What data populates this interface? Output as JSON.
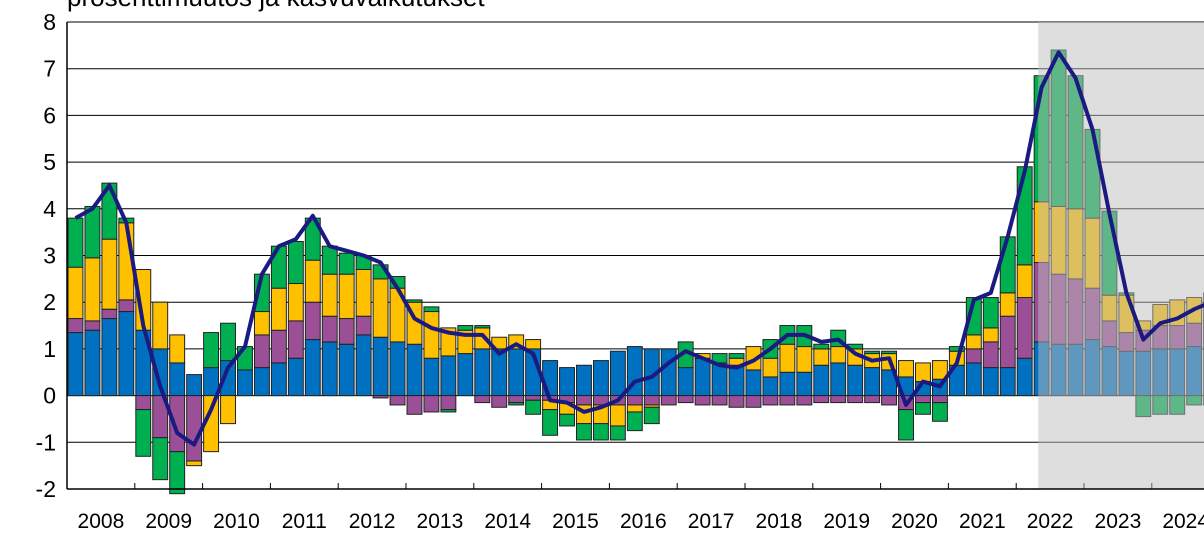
{
  "chart_data": {
    "type": "stacked-bar-line",
    "title": "prosenttimuutos ja kasvuvaikutukset",
    "categories": [
      null,
      null,
      null,
      null,
      null,
      null,
      null,
      null,
      null,
      null,
      null,
      null,
      null,
      null,
      null,
      null,
      null,
      null,
      null,
      null,
      null,
      null,
      null,
      null,
      null,
      null,
      null,
      null,
      null,
      null,
      null,
      null,
      null,
      null,
      null,
      null,
      null,
      null,
      null,
      null,
      null,
      null,
      null,
      null,
      null,
      null,
      null,
      null,
      null,
      null,
      null,
      null,
      null,
      null,
      null,
      null,
      null,
      null,
      null,
      null,
      null,
      null,
      null,
      null,
      null,
      null,
      null,
      null
    ],
    "year_labels": [
      "2008",
      "2009",
      "2010",
      "2011",
      "2012",
      "2013",
      "2014",
      "2015",
      "2016",
      "2017",
      "2018",
      "2019",
      "2020",
      "2021",
      "2022",
      "2023",
      "2024"
    ],
    "ylim": [
      -2,
      8
    ],
    "yticks": [
      -2,
      -1,
      0,
      1,
      2,
      3,
      4,
      5,
      6,
      7,
      8
    ],
    "grid": true,
    "series": [
      {
        "color": "#0070c0",
        "values": [
          1.35,
          1.4,
          1.65,
          1.8,
          1.4,
          1.0,
          0.7,
          0.45,
          0.6,
          0.75,
          0.55,
          0.6,
          0.7,
          0.8,
          1.2,
          1.15,
          1.1,
          1.3,
          1.25,
          1.15,
          1.1,
          0.8,
          0.85,
          0.9,
          1.0,
          1.0,
          1.0,
          1.0,
          0.75,
          0.6,
          0.65,
          0.75,
          0.95,
          1.05,
          1.0,
          1.0,
          0.6,
          0.8,
          0.7,
          0.65,
          0.55,
          0.4,
          0.5,
          0.5,
          0.65,
          0.7,
          0.65,
          0.6,
          0.55,
          0.4,
          0.3,
          0.35,
          0.65,
          0.7,
          0.6,
          0.6,
          0.8,
          1.15,
          1.1,
          1.1,
          1.2,
          1.05,
          0.95,
          0.95,
          1.0,
          1.0,
          1.05,
          1.05
        ]
      },
      {
        "color": "#9b4f96",
        "values": [
          0.3,
          0.2,
          0.2,
          0.25,
          -0.3,
          -0.9,
          -1.2,
          -1.4,
          0,
          0,
          0,
          0.7,
          0.7,
          0.8,
          0.8,
          0.55,
          0.55,
          0.4,
          -0.05,
          -0.2,
          -0.4,
          -0.35,
          -0.3,
          0,
          -0.15,
          -0.25,
          -0.15,
          -0.1,
          -0.1,
          -0.15,
          -0.2,
          -0.2,
          -0.2,
          -0.2,
          -0.2,
          -0.2,
          -0.15,
          -0.2,
          -0.2,
          -0.25,
          -0.25,
          -0.2,
          -0.2,
          -0.2,
          -0.15,
          -0.15,
          -0.15,
          -0.15,
          -0.2,
          -0.3,
          -0.15,
          -0.15,
          0,
          0.3,
          0.55,
          1.1,
          1.3,
          1.7,
          1.5,
          1.4,
          1.1,
          0.55,
          0.4,
          0.45,
          0.5,
          0.5,
          0.5,
          0.55
        ]
      },
      {
        "color": "#ffc000",
        "values": [
          1.1,
          1.35,
          1.5,
          1.65,
          1.3,
          1.0,
          0.6,
          -0.1,
          -1.2,
          -0.6,
          0,
          0.5,
          0.9,
          0.8,
          0.9,
          0.9,
          0.95,
          1.0,
          1.25,
          1.15,
          0.9,
          1.0,
          0.6,
          0.5,
          0.45,
          0.25,
          0.3,
          0.2,
          -0.2,
          -0.25,
          -0.4,
          -0.4,
          -0.45,
          -0.15,
          -0.05,
          0,
          0,
          0.1,
          0,
          0.15,
          0.5,
          0.4,
          0.6,
          0.55,
          0.35,
          0.35,
          0.35,
          0.3,
          0.35,
          0.35,
          0.4,
          0.4,
          0.3,
          0.3,
          0.3,
          0.5,
          0.7,
          1.3,
          1.45,
          1.5,
          1.5,
          0.55,
          0.8,
          0.2,
          0.45,
          0.55,
          0.55,
          0.6
        ]
      },
      {
        "color": "#00b050",
        "values": [
          1.05,
          1.1,
          1.2,
          0.1,
          -1.0,
          -0.9,
          -0.9,
          0,
          0.75,
          0.8,
          0.5,
          0.8,
          0.9,
          0.9,
          0.9,
          0.6,
          0.45,
          0.3,
          0.3,
          0.25,
          0.05,
          0.1,
          -0.05,
          0.1,
          0.05,
          0,
          -0.05,
          -0.3,
          -0.55,
          -0.25,
          -0.35,
          -0.35,
          -0.3,
          -0.4,
          -0.35,
          0,
          0.55,
          0,
          0.2,
          0.1,
          0,
          0.4,
          0.4,
          0.45,
          0.1,
          0.35,
          0.1,
          0.05,
          0.05,
          -0.65,
          -0.25,
          -0.4,
          0.1,
          0.8,
          0.65,
          1.2,
          2.1,
          2.7,
          3.35,
          2.85,
          1.9,
          1.8,
          0.05,
          -0.45,
          -0.4,
          -0.4,
          -0.2,
          -0.2
        ]
      },
      {
        "type": "line",
        "color": "#1a1a80",
        "values": [
          3.8,
          4.0,
          4.5,
          3.7,
          1.5,
          0.2,
          -0.8,
          -1.05,
          -0.3,
          0.6,
          1.05,
          2.6,
          3.2,
          3.35,
          3.85,
          3.2,
          3.1,
          3.0,
          2.85,
          2.3,
          1.65,
          1.45,
          1.35,
          1.3,
          1.3,
          0.9,
          1.1,
          0.9,
          -0.1,
          -0.15,
          -0.35,
          -0.25,
          -0.1,
          0.3,
          0.4,
          0.7,
          0.95,
          0.8,
          0.65,
          0.6,
          0.75,
          1.0,
          1.3,
          1.3,
          1.15,
          1.2,
          0.9,
          0.75,
          0.8,
          -0.2,
          0.3,
          0.2,
          0.7,
          2.05,
          2.2,
          3.4,
          4.8,
          6.6,
          7.35,
          6.8,
          5.7,
          3.9,
          2.2,
          1.2,
          1.55,
          1.65,
          1.85,
          2.0
        ]
      }
    ]
  }
}
